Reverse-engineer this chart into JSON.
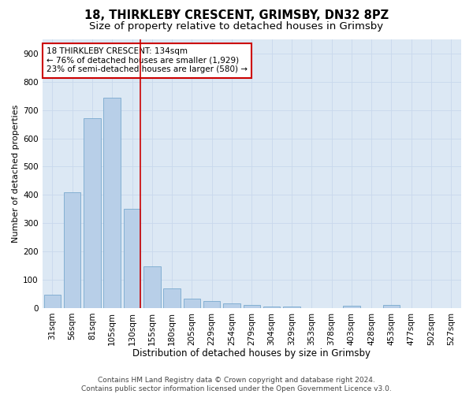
{
  "title1": "18, THIRKLEBY CRESCENT, GRIMSBY, DN32 8PZ",
  "title2": "Size of property relative to detached houses in Grimsby",
  "xlabel": "Distribution of detached houses by size in Grimsby",
  "ylabel": "Number of detached properties",
  "footer": "Contains HM Land Registry data © Crown copyright and database right 2024.\nContains public sector information licensed under the Open Government Licence v3.0.",
  "categories": [
    "31sqm",
    "56sqm",
    "81sqm",
    "105sqm",
    "130sqm",
    "155sqm",
    "180sqm",
    "205sqm",
    "229sqm",
    "254sqm",
    "279sqm",
    "304sqm",
    "329sqm",
    "353sqm",
    "378sqm",
    "403sqm",
    "428sqm",
    "453sqm",
    "477sqm",
    "502sqm",
    "527sqm"
  ],
  "values": [
    46,
    410,
    670,
    745,
    352,
    148,
    70,
    33,
    25,
    17,
    10,
    5,
    5,
    0,
    0,
    8,
    0,
    10,
    0,
    0,
    0
  ],
  "bar_color": "#b8cfe8",
  "bar_edge_color": "#6a9fc8",
  "vline_index": 4,
  "annotation_text": "18 THIRKLEBY CRESCENT: 134sqm\n← 76% of detached houses are smaller (1,929)\n23% of semi-detached houses are larger (580) →",
  "annotation_box_color": "#ffffff",
  "annotation_box_edge": "#cc0000",
  "vline_color": "#cc0000",
  "grid_color": "#c8d8ec",
  "bg_color": "#dce8f4",
  "ylim": [
    0,
    950
  ],
  "yticks": [
    0,
    100,
    200,
    300,
    400,
    500,
    600,
    700,
    800,
    900
  ],
  "title1_fontsize": 10.5,
  "title2_fontsize": 9.5,
  "xlabel_fontsize": 8.5,
  "ylabel_fontsize": 8,
  "tick_fontsize": 7.5,
  "footer_fontsize": 6.5
}
